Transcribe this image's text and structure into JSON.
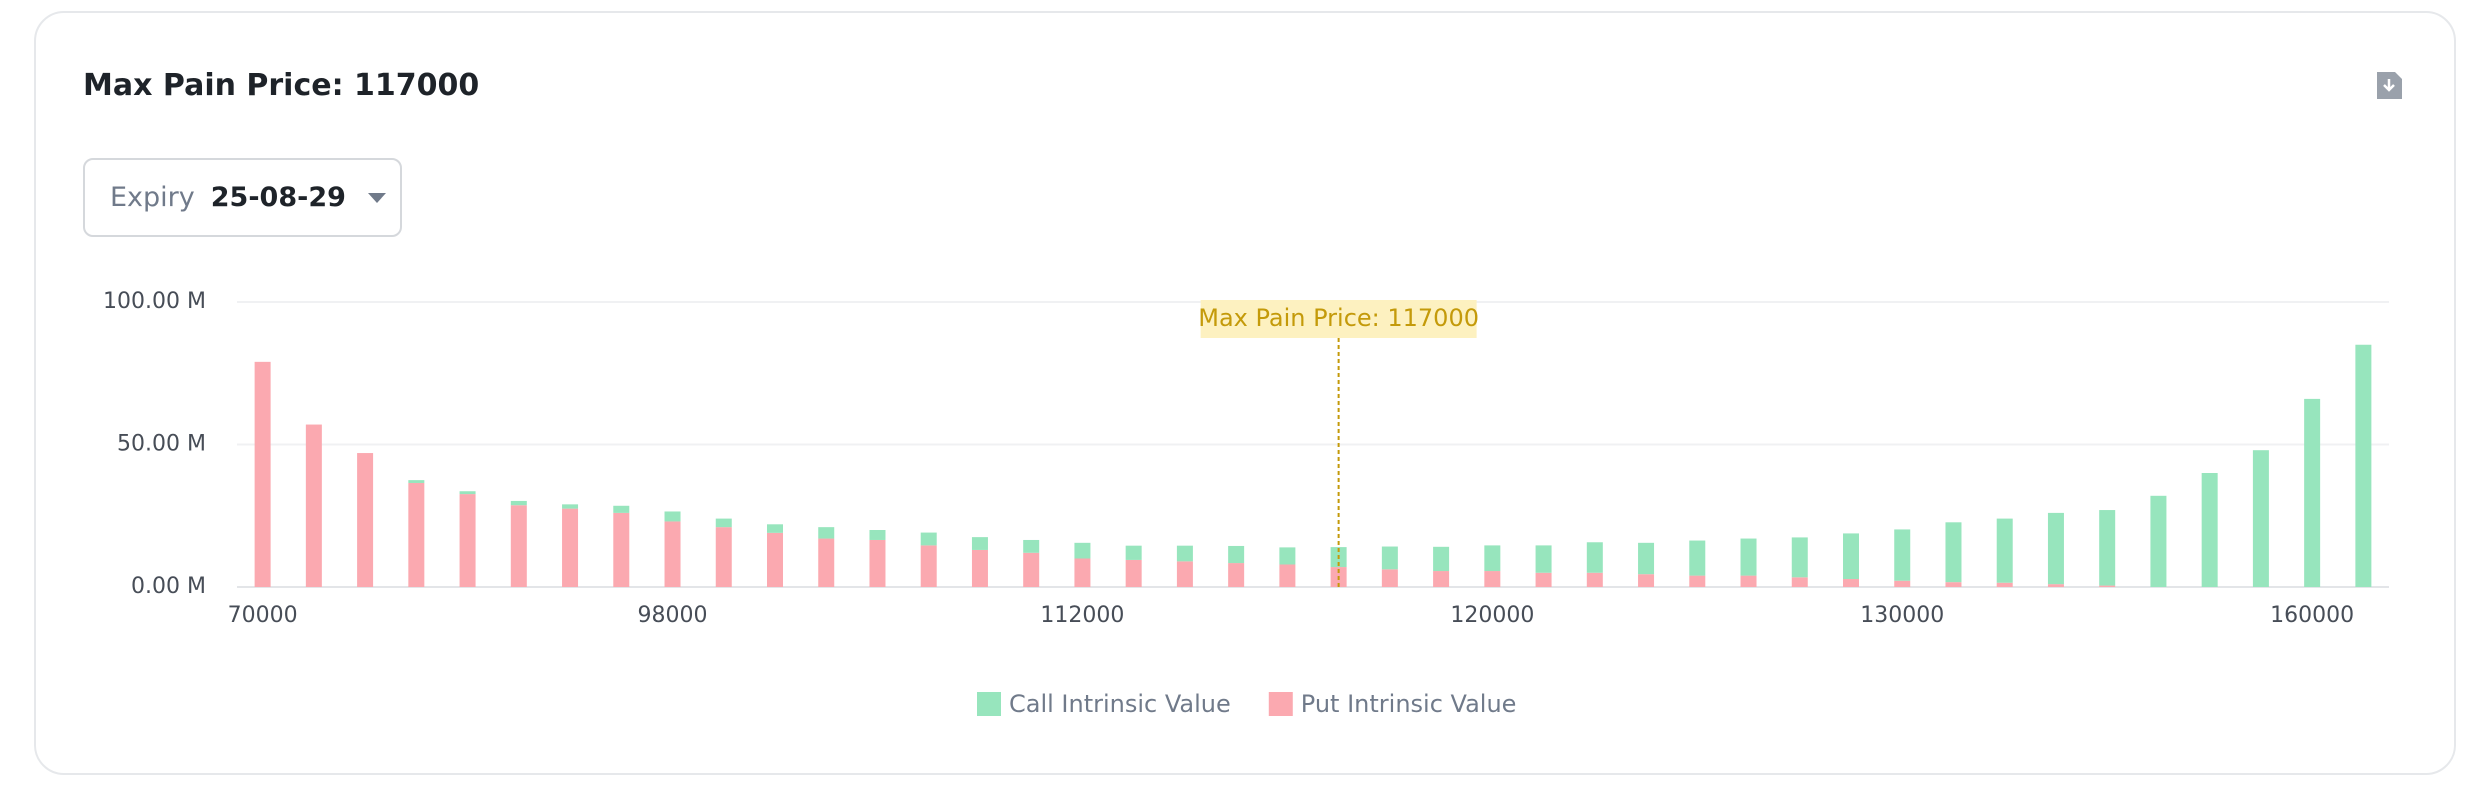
{
  "header": {
    "title": "Max Pain Price: 117000"
  },
  "expiry": {
    "label": "Expiry",
    "value": "25-08-29"
  },
  "chart_data": {
    "type": "bar",
    "stacked": true,
    "categories": [
      "70000",
      null,
      null,
      null,
      null,
      null,
      null,
      null,
      "98000",
      null,
      null,
      null,
      null,
      null,
      null,
      null,
      "112000",
      null,
      null,
      null,
      null,
      null,
      null,
      null,
      "120000",
      null,
      null,
      null,
      null,
      null,
      null,
      null,
      "130000",
      null,
      null,
      null,
      null,
      null,
      null,
      null,
      "160000",
      null
    ],
    "series": [
      {
        "name": "Put Intrinsic Value",
        "color": "#fba9b0",
        "values": [
          79,
          57,
          47,
          36.5,
          32.6,
          28.7,
          27.5,
          26,
          23,
          21,
          19,
          17,
          16.5,
          14.6,
          13,
          12,
          10,
          9.5,
          9,
          8.4,
          7.9,
          7,
          6.2,
          5.6,
          5.6,
          5,
          5,
          4.5,
          4,
          4,
          3.4,
          2.8,
          2.2,
          1.7,
          1.5,
          1,
          0.5,
          0,
          0,
          0,
          0,
          0
        ]
      },
      {
        "name": "Call Intrinsic Value",
        "color": "#97e5bd",
        "values": [
          0,
          0,
          0,
          1,
          1,
          1.5,
          1.5,
          2.5,
          3.5,
          3,
          3,
          4,
          3.5,
          4.5,
          4.5,
          4.5,
          5.5,
          5,
          5.5,
          6,
          6,
          7,
          8,
          8.5,
          9,
          9.6,
          10.7,
          11,
          12.3,
          13,
          14,
          16,
          18,
          21,
          22.5,
          25,
          26.5,
          32,
          40,
          48,
          66,
          85
        ]
      }
    ],
    "ylim": [
      0,
      100
    ],
    "yticks": [
      {
        "value": 0,
        "label": "0.00 M"
      },
      {
        "value": 50,
        "label": "50.00 M"
      },
      {
        "value": 100,
        "label": "100.00 M"
      }
    ],
    "grid": true,
    "legend": "bottom",
    "annotation": {
      "label": "Max Pain Price: 117000",
      "index": 21
    }
  }
}
